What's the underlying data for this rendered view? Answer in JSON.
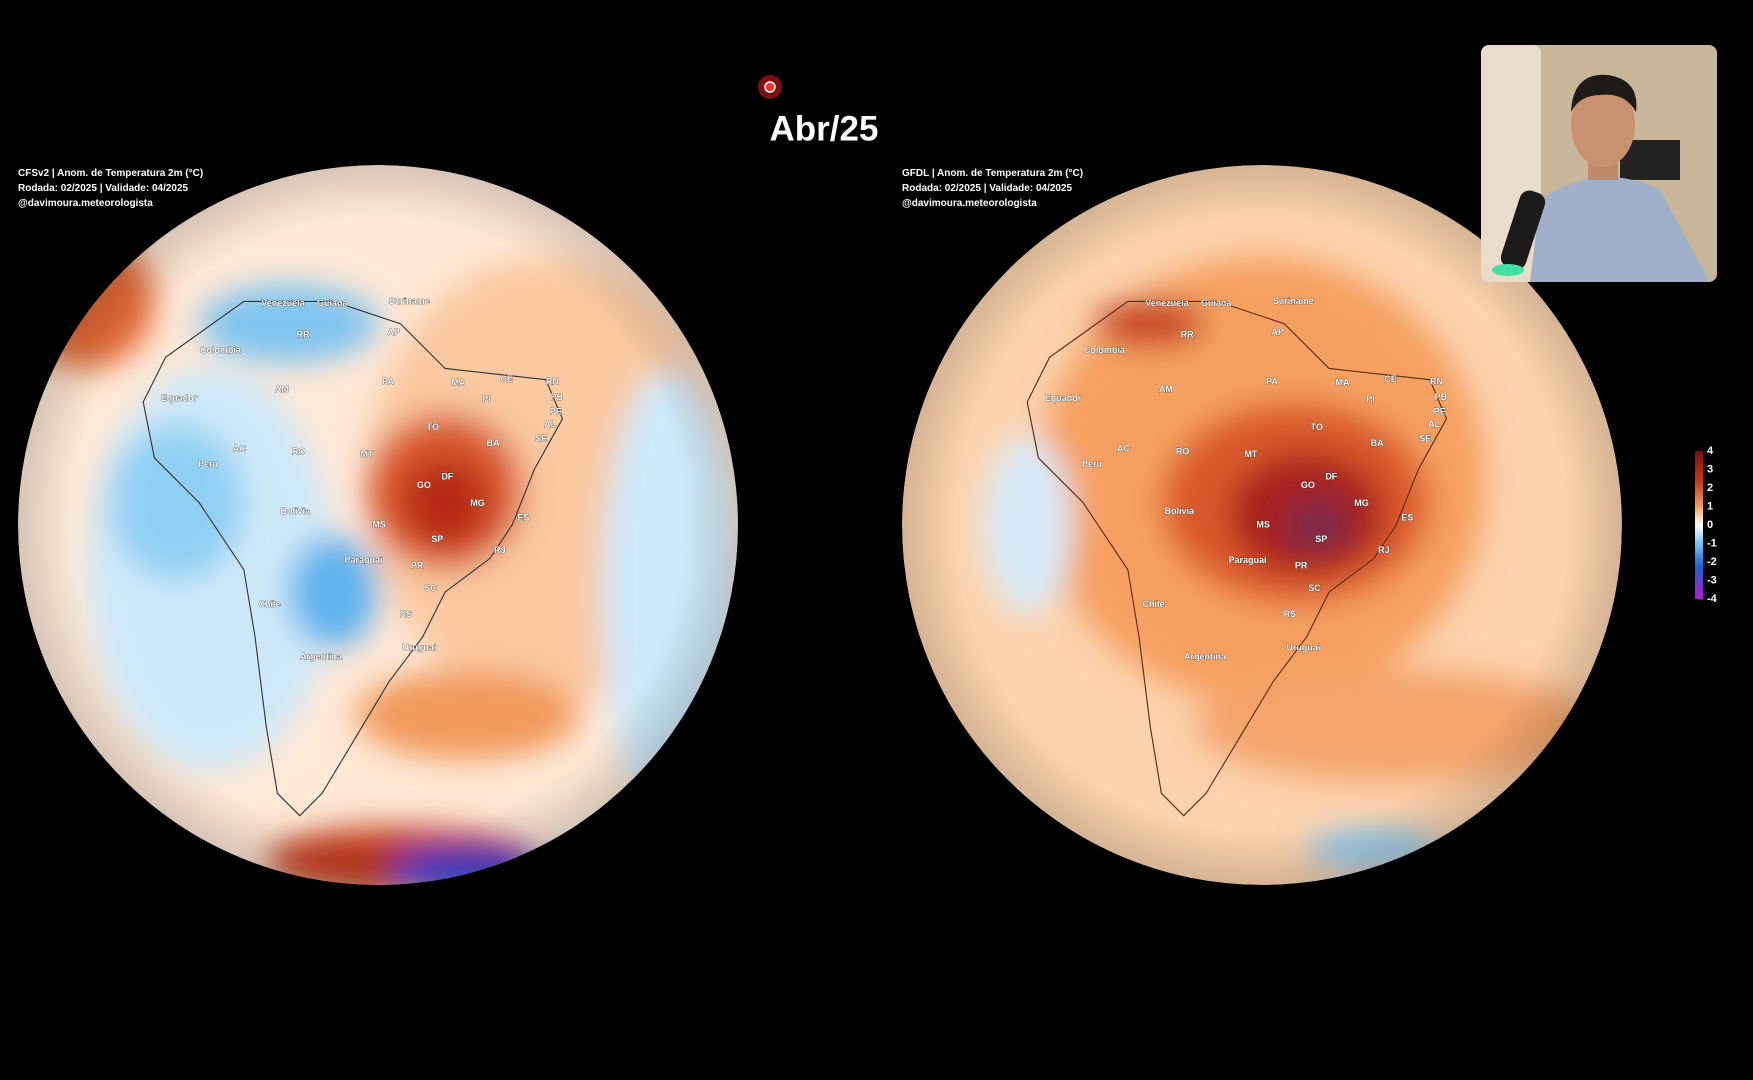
{
  "title": "Abr/25",
  "maps": [
    {
      "header": [
        "CFSv2 | Anom. de Temperatura 2m (°C)",
        "Rodada: 02/2025 | Validade: 04/2025",
        "@davimoura.meteorologista"
      ],
      "labels": [
        "Venezuela",
        "Guiana",
        "Suriname",
        "RR",
        "AP",
        "Colombia",
        "Equador",
        "AM",
        "PA",
        "MA",
        "CE",
        "RN",
        "PB",
        "PE",
        "AL",
        "SE",
        "PI",
        "TO",
        "BA",
        "AC",
        "RO",
        "MT",
        "Peru",
        "GO",
        "DF",
        "MG",
        "ES",
        "Bolivia",
        "MS",
        "SP",
        "RJ",
        "Paraguai",
        "PR",
        "SC",
        "Chile",
        "RS",
        "Uruguai",
        "Argentina"
      ]
    },
    {
      "header": [
        "GFDL | Anom. de Temperatura 2m (°C)",
        "Rodada: 02/2025 | Validade: 04/2025",
        "@davimoura.meteorologista"
      ],
      "labels": [
        "Venezuela",
        "Guiana",
        "Suriname",
        "RR",
        "AP",
        "Colombia",
        "Equador",
        "AM",
        "PA",
        "MA",
        "CE",
        "RN",
        "PB",
        "PE",
        "AL",
        "SE",
        "PI",
        "TO",
        "BA",
        "AC",
        "RO",
        "MT",
        "Peru",
        "GO",
        "DF",
        "MG",
        "ES",
        "Bolivia",
        "MS",
        "SP",
        "RJ",
        "Paraguai",
        "PR",
        "SC",
        "Chile",
        "RS",
        "Uruguai",
        "Argentina"
      ]
    }
  ],
  "colorbar": {
    "ticks": [
      4,
      3,
      2,
      1,
      0,
      -1,
      -2,
      -3,
      -4
    ]
  }
}
